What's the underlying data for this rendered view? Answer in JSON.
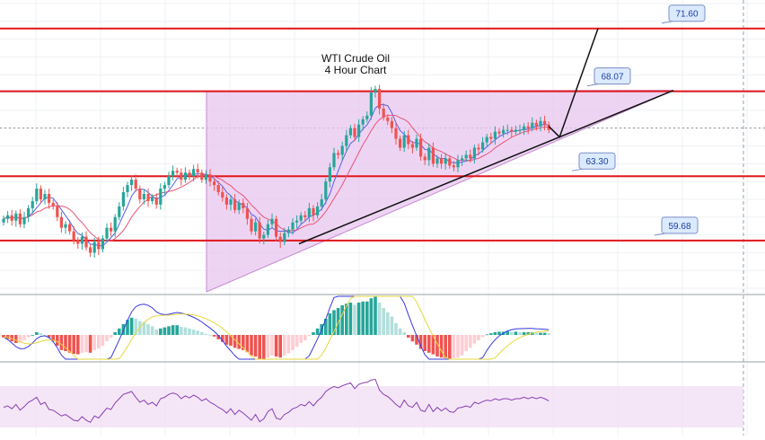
{
  "chart_data": {
    "type": "candlestick",
    "title": "WTI Crude Oil",
    "subtitle": "4 Hour Chart",
    "price_range": [
      56.8,
      73.2
    ],
    "colors": {
      "up": "#26a69a",
      "down": "#ef5350",
      "level": "#e0161b",
      "pattern_fill": "#e8c6ef",
      "pattern_edge": "#c48bd0",
      "ma_fast": "#5560e8",
      "ma_slow": "#e8557a",
      "rsi": "#8a3fb3",
      "rsi_band": "#efdcf3",
      "label_bg": "#dceaff",
      "label_border": "#7b8fc6",
      "macd_line": "#3a3ae0",
      "signal_line": "#e6d83a",
      "hist_pos_strong": "#26a69a",
      "hist_pos_weak": "#b2dfdb",
      "hist_neg_strong": "#ef5350",
      "hist_neg_weak": "#ffcdd2"
    },
    "levels": [
      {
        "value": 71.6,
        "label": "71.60"
      },
      {
        "value": 68.07,
        "label": "68.07"
      },
      {
        "value": 63.3,
        "label": "63.30"
      },
      {
        "value": 59.68,
        "label": "59.68"
      }
    ],
    "pattern": "ascending-triangle",
    "candles_close": [
      60.9,
      61.1,
      60.8,
      61.2,
      60.6,
      61.0,
      61.5,
      61.9,
      62.6,
      62.0,
      62.3,
      61.8,
      61.6,
      61.0,
      60.4,
      60.6,
      60.2,
      59.7,
      59.5,
      59.9,
      59.3,
      59.0,
      59.6,
      59.2,
      59.8,
      60.4,
      60.2,
      61.0,
      61.6,
      62.4,
      62.8,
      63.1,
      62.6,
      62.0,
      62.3,
      61.9,
      62.1,
      61.7,
      62.6,
      62.8,
      63.3,
      63.6,
      63.5,
      63.1,
      63.5,
      63.3,
      63.7,
      63.5,
      63.1,
      63.4,
      63.0,
      62.8,
      62.4,
      62.1,
      61.7,
      62.0,
      61.4,
      61.8,
      61.5,
      60.9,
      60.2,
      60.7,
      59.8,
      60.0,
      60.6,
      60.9,
      59.9,
      59.6,
      60.1,
      60.3,
      60.7,
      60.8,
      61.1,
      61.0,
      61.5,
      61.1,
      61.6,
      62.0,
      63.0,
      63.8,
      64.6,
      64.5,
      65.0,
      65.6,
      66.0,
      65.5,
      66.2,
      66.5,
      66.7,
      68.0,
      68.2,
      67.1,
      66.6,
      66.4,
      66.0,
      65.4,
      64.9,
      65.6,
      65.1,
      64.9,
      65.4,
      64.4,
      64.2,
      64.9,
      64.0,
      64.3,
      64.0,
      64.3,
      63.9,
      63.8,
      64.2,
      64.3,
      64.5,
      64.3,
      64.9,
      64.8,
      65.2,
      65.5,
      65.4,
      65.8,
      65.7,
      65.9,
      65.9,
      65.8,
      65.9,
      65.9,
      66.1,
      66.0,
      66.3,
      66.1,
      66.4,
      66.2,
      65.9
    ],
    "rsi_values": [
      48,
      50,
      46,
      52,
      44,
      49,
      55,
      58,
      62,
      52,
      55,
      45,
      44,
      40,
      36,
      38,
      34,
      30,
      29,
      35,
      30,
      27,
      36,
      33,
      40,
      47,
      45,
      54,
      60,
      66,
      68,
      70,
      62,
      55,
      58,
      52,
      55,
      50,
      60,
      62,
      66,
      68,
      66,
      60,
      64,
      61,
      65,
      62,
      57,
      60,
      55,
      52,
      48,
      45,
      40,
      46,
      38,
      44,
      40,
      35,
      30,
      38,
      28,
      32,
      42,
      46,
      33,
      31,
      38,
      41,
      46,
      48,
      52,
      50,
      56,
      50,
      57,
      62,
      70,
      74,
      77,
      75,
      78,
      80,
      82,
      74,
      80,
      82,
      83,
      86,
      87,
      72,
      66,
      63,
      58,
      52,
      48,
      58,
      50,
      48,
      55,
      44,
      42,
      52,
      42,
      48,
      43,
      47,
      42,
      41,
      47,
      48,
      50,
      48,
      55,
      53,
      56,
      58,
      57,
      60,
      58,
      60,
      60,
      58,
      60,
      60,
      62,
      60,
      62,
      60,
      62,
      60,
      57
    ],
    "hist_values": [
      -0.05,
      -0.08,
      -0.12,
      -0.15,
      -0.14,
      -0.1,
      -0.05,
      0.0,
      0.05,
      0.03,
      0.0,
      -0.05,
      -0.12,
      -0.2,
      -0.28,
      -0.3,
      -0.33,
      -0.35,
      -0.36,
      -0.33,
      -0.32,
      -0.33,
      -0.28,
      -0.25,
      -0.2,
      -0.12,
      -0.05,
      0.05,
      0.12,
      0.2,
      0.28,
      0.32,
      0.3,
      0.26,
      0.24,
      0.2,
      0.16,
      0.1,
      0.12,
      0.14,
      0.16,
      0.18,
      0.18,
      0.15,
      0.14,
      0.12,
      0.1,
      0.08,
      0.05,
      0.02,
      0.0,
      -0.03,
      -0.08,
      -0.13,
      -0.18,
      -0.2,
      -0.24,
      -0.26,
      -0.28,
      -0.32,
      -0.38,
      -0.4,
      -0.45,
      -0.46,
      -0.42,
      -0.38,
      -0.4,
      -0.42,
      -0.38,
      -0.34,
      -0.28,
      -0.22,
      -0.15,
      -0.1,
      -0.02,
      0.05,
      0.12,
      0.2,
      0.3,
      0.4,
      0.46,
      0.5,
      0.55,
      0.58,
      0.6,
      0.56,
      0.6,
      0.62,
      0.62,
      0.68,
      0.72,
      0.6,
      0.5,
      0.42,
      0.34,
      0.22,
      0.12,
      0.05,
      -0.05,
      -0.12,
      -0.18,
      -0.26,
      -0.3,
      -0.33,
      -0.36,
      -0.4,
      -0.42,
      -0.43,
      -0.44,
      -0.43,
      -0.42,
      -0.38,
      -0.3,
      -0.24,
      -0.16,
      -0.1,
      -0.04,
      0.01,
      0.03,
      0.05,
      0.06,
      0.06,
      0.07,
      0.06,
      0.06,
      0.05,
      0.05,
      0.05,
      0.05,
      0.04,
      0.04,
      0.04,
      0.03
    ]
  }
}
